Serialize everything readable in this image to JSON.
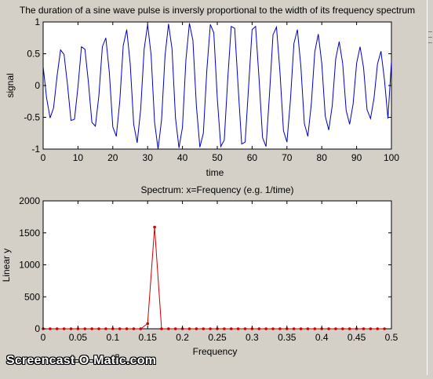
{
  "figure": {
    "watermark": "Screencast-O-Matic.com"
  },
  "chart_data": [
    {
      "type": "line",
      "title": "The duration of a sine wave pulse is inversly proportional to the width of its frequency spectrum",
      "xlabel": "time",
      "ylabel": "signal",
      "xlim": [
        0,
        100
      ],
      "ylim": [
        -1,
        1
      ],
      "xticks": [
        0,
        10,
        20,
        30,
        40,
        50,
        60,
        70,
        80,
        90,
        100
      ],
      "xtick_labels": [
        "0",
        "10",
        "20",
        "30",
        "40",
        "50",
        "60",
        "70",
        "80",
        "90",
        "100"
      ],
      "yticks": [
        -1,
        -0.5,
        0,
        0.5,
        1
      ],
      "ytick_labels": [
        "-1",
        "-0.5",
        "0",
        "0.5",
        "1"
      ],
      "grid": false,
      "line_color": "#0000c0",
      "series": [
        {
          "x": [
            0,
            1,
            2,
            3,
            4,
            5,
            6,
            7,
            8,
            9,
            10,
            11,
            12,
            13,
            14,
            15,
            16,
            17,
            18,
            19,
            20,
            21,
            22,
            23,
            24,
            25,
            26,
            27,
            28,
            29,
            30,
            31,
            32,
            33,
            34,
            35,
            36,
            37,
            38,
            39,
            40,
            41,
            42,
            43,
            44,
            45,
            46,
            47,
            48,
            49,
            50,
            51,
            52,
            53,
            54,
            55,
            56,
            57,
            58,
            59,
            60,
            61,
            62,
            63,
            64,
            65,
            66,
            67,
            68,
            69,
            70,
            71,
            72,
            73,
            74,
            75,
            76,
            77,
            78,
            79,
            80,
            81,
            82,
            83,
            84,
            85,
            86,
            87,
            88,
            89,
            90,
            91,
            92,
            93,
            94,
            95,
            96,
            97,
            98,
            99,
            100
          ],
          "values": [
            0.3,
            -0.2,
            -0.51,
            -0.35,
            0.15,
            0.56,
            0.49,
            0.01,
            -0.55,
            -0.53,
            -0.02,
            0.61,
            0.57,
            0.05,
            -0.58,
            -0.64,
            -0.16,
            0.61,
            0.75,
            0.21,
            -0.65,
            -0.8,
            -0.25,
            0.63,
            0.88,
            0.34,
            -0.61,
            -0.9,
            -0.38,
            0.57,
            0.96,
            0.48,
            -0.58,
            -1.0,
            -0.54,
            0.47,
            0.97,
            0.58,
            -0.51,
            -0.98,
            -0.66,
            0.41,
            0.98,
            0.71,
            -0.32,
            -0.97,
            -0.75,
            0.24,
            0.96,
            0.83,
            -0.2,
            -0.96,
            -0.86,
            0.1,
            0.93,
            0.9,
            -0.03,
            -0.92,
            -0.89,
            -0.01,
            0.88,
            0.93,
            0.1,
            -0.82,
            -0.96,
            -0.13,
            0.8,
            0.92,
            0.21,
            -0.71,
            -0.89,
            -0.23,
            0.66,
            0.88,
            0.3,
            -0.6,
            -0.8,
            -0.29,
            0.53,
            0.81,
            0.35,
            -0.48,
            -0.7,
            -0.32,
            0.42,
            0.69,
            0.35,
            -0.39,
            -0.61,
            -0.29,
            0.35,
            0.61,
            0.28,
            -0.38,
            -0.52,
            -0.2,
            0.34,
            0.54,
            0.09,
            -0.52,
            0.38
          ]
        }
      ]
    },
    {
      "type": "line",
      "title": "Spectrum: x=Frequency (e.g. 1/time)",
      "xlabel": "Frequency",
      "ylabel": "Linear y",
      "xlim": [
        0,
        0.5
      ],
      "ylim": [
        0,
        2000
      ],
      "xticks": [
        0,
        0.05,
        0.1,
        0.15,
        0.2,
        0.25,
        0.3,
        0.35,
        0.4,
        0.45,
        0.5
      ],
      "xtick_labels": [
        "0",
        "0.05",
        "0.1",
        "0.15",
        "0.2",
        "0.25",
        "0.3",
        "0.35",
        "0.4",
        "0.45",
        "0.5"
      ],
      "yticks": [
        0,
        500,
        1000,
        1500,
        2000
      ],
      "ytick_labels": [
        "0",
        "500",
        "1000",
        "1500",
        "2000"
      ],
      "grid": false,
      "line_color": "#cc0000",
      "marker": "dot",
      "series": [
        {
          "x": [
            0,
            0.01,
            0.02,
            0.03,
            0.04,
            0.05,
            0.06,
            0.07,
            0.08,
            0.09,
            0.1,
            0.11,
            0.12,
            0.13,
            0.14,
            0.15,
            0.16,
            0.17,
            0.18,
            0.19,
            0.2,
            0.21,
            0.22,
            0.23,
            0.24,
            0.25,
            0.26,
            0.27,
            0.28,
            0.29,
            0.3,
            0.31,
            0.32,
            0.33,
            0.34,
            0.35,
            0.36,
            0.37,
            0.38,
            0.39,
            0.4,
            0.41,
            0.42,
            0.43,
            0.44,
            0.45,
            0.46,
            0.47,
            0.48,
            0.49
          ],
          "values": [
            0,
            0,
            0,
            0,
            0,
            0,
            0,
            0,
            0,
            0,
            0,
            0,
            0,
            0,
            0,
            80,
            1590,
            0,
            0,
            0,
            0,
            0,
            0,
            0,
            0,
            0,
            0,
            0,
            0,
            0,
            0,
            0,
            0,
            0,
            0,
            0,
            0,
            0,
            0,
            0,
            0,
            0,
            0,
            0,
            0,
            0,
            0,
            0,
            0,
            0
          ]
        }
      ]
    }
  ]
}
